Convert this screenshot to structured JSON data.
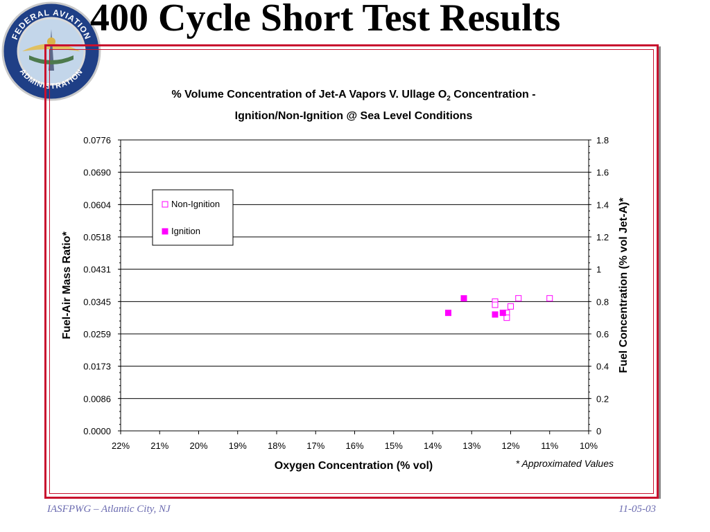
{
  "slide": {
    "title": "400 Cycle Short Test Results",
    "footer_left": "IASFPWG – Atlantic City, NJ",
    "footer_right": "11-05-03",
    "logo_text": "FEDERAL AVIATION ADMINISTRATION"
  },
  "colors": {
    "frame": "#c8102e",
    "marker": "#ff00ff",
    "footer": "#6b6bb0"
  },
  "chart_data": {
    "type": "scatter",
    "title_line1": "% Volume Concentration of Jet-A Vapors V. Ullage O",
    "title_sub": "2",
    "title_line1_end": " Concentration -",
    "title_line2": "Ignition/Non-Ignition @ Sea Level Conditions",
    "xlabel": "Oxygen Concentration (% vol)",
    "ylabel": "Fuel-Air Mass Ratio*",
    "y2label": "Fuel Concentration (% vol Jet-A)*",
    "note": "* Approximated Values",
    "x_reversed": true,
    "xlim": [
      22,
      10
    ],
    "x_ticks": [
      22,
      21,
      20,
      19,
      18,
      17,
      16,
      15,
      14,
      13,
      12,
      11,
      10
    ],
    "x_tick_labels": [
      "22%",
      "21%",
      "20%",
      "19%",
      "18%",
      "17%",
      "16%",
      "15%",
      "14%",
      "13%",
      "12%",
      "11%",
      "10%"
    ],
    "y2lim": [
      0,
      1.8
    ],
    "y_tick_labels": [
      "0.0000",
      "0.0086",
      "0.0173",
      "0.0259",
      "0.0345",
      "0.0431",
      "0.0518",
      "0.0604",
      "0.0690",
      "0.0776"
    ],
    "y2_tick_labels": [
      "0",
      "0.2",
      "0.4",
      "0.6",
      "0.8",
      "1",
      "1.2",
      "1.4",
      "1.6",
      "1.8"
    ],
    "grid": true,
    "legend_position": "top-left",
    "series": [
      {
        "name": "Non-Ignition",
        "marker": "open-square",
        "points": [
          {
            "x": 12.4,
            "y": 0.8
          },
          {
            "x": 12.4,
            "y": 0.78
          },
          {
            "x": 12.1,
            "y": 0.73
          },
          {
            "x": 12.1,
            "y": 0.7
          },
          {
            "x": 12.0,
            "y": 0.77
          },
          {
            "x": 11.8,
            "y": 0.82
          },
          {
            "x": 11.0,
            "y": 0.82
          }
        ]
      },
      {
        "name": "Ignition",
        "marker": "filled-square",
        "points": [
          {
            "x": 13.6,
            "y": 0.73
          },
          {
            "x": 13.2,
            "y": 0.82
          },
          {
            "x": 12.4,
            "y": 0.72
          },
          {
            "x": 12.2,
            "y": 0.73
          }
        ]
      }
    ]
  }
}
